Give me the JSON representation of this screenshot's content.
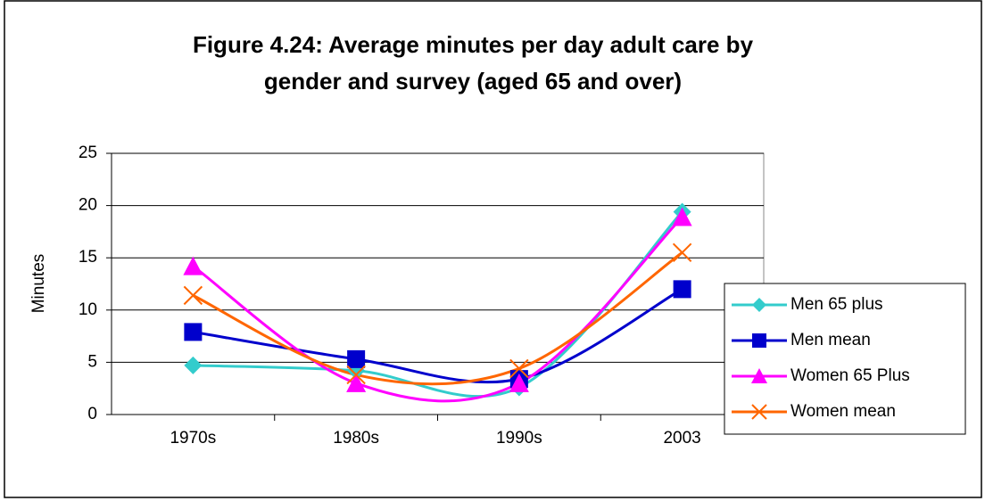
{
  "chart_data": {
    "type": "line",
    "title": [
      "Figure 4.24: Average minutes per day adult care  by",
      "gender and survey (aged 65 and over)"
    ],
    "y_label": "Minutes",
    "categories": [
      "1970s",
      "1980s",
      "1990s",
      "2003"
    ],
    "series": [
      {
        "name": "Men 65 plus",
        "color": "#33cccc",
        "marker": "diamond",
        "values": [
          4.7,
          4.2,
          2.6,
          19.4
        ]
      },
      {
        "name": "Men mean",
        "color": "#0000cc",
        "marker": "square",
        "values": [
          7.9,
          5.3,
          3.4,
          12.0
        ]
      },
      {
        "name": "Women 65 Plus",
        "color": "#ff00ff",
        "marker": "triangle",
        "values": [
          14.2,
          3.0,
          3.0,
          18.9
        ]
      },
      {
        "name": "Women mean",
        "color": "#ff6600",
        "marker": "x",
        "values": [
          11.4,
          3.8,
          4.4,
          15.5
        ]
      }
    ],
    "ylim": [
      0,
      25
    ],
    "yticks": [
      0,
      5,
      10,
      15,
      20,
      25
    ],
    "grid": true,
    "smooth": true,
    "legend": "right"
  }
}
